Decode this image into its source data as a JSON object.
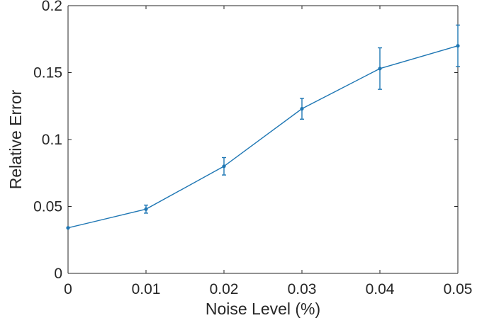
{
  "chart_data": {
    "type": "line",
    "xlabel": "Noise Level (%)",
    "ylabel": "Relative Error",
    "xlim": [
      0,
      0.05
    ],
    "ylim": [
      0,
      0.2
    ],
    "x_ticks": [
      "0",
      "0.01",
      "0.02",
      "0.03",
      "0.04",
      "0.05"
    ],
    "y_ticks": [
      "0",
      "0.05",
      "0.1",
      "0.15",
      "0.2"
    ],
    "grid": false,
    "legend": "none",
    "series": [
      {
        "x": [
          0,
          0.01,
          0.02,
          0.03,
          0.04,
          0.05
        ],
        "values": [
          0.034,
          0.048,
          0.08,
          0.123,
          0.153,
          0.17
        ],
        "error": [
          0,
          0.003,
          0.0065,
          0.0078,
          0.0155,
          0.0155
        ],
        "color": "#1f77b4"
      }
    ]
  }
}
